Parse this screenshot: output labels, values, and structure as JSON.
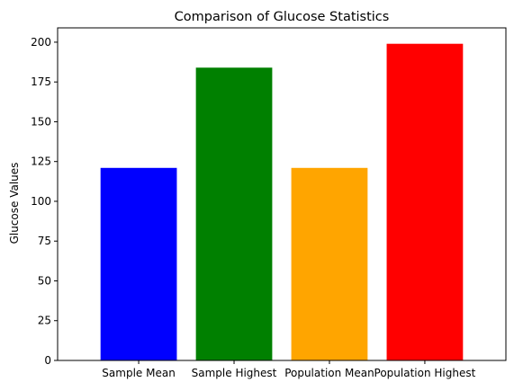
{
  "chart_data": {
    "type": "bar",
    "title": "Comparison of Glucose Statistics",
    "xlabel": "",
    "ylabel": "Glucose Values",
    "categories": [
      "Sample Mean",
      "Sample Highest",
      "Population Mean",
      "Population Highest"
    ],
    "values": [
      121,
      184,
      121,
      199
    ],
    "colors": [
      "#0000ff",
      "#008000",
      "#ffa500",
      "#ff0000"
    ],
    "ylim": [
      0,
      209
    ],
    "yticks": [
      0,
      25,
      50,
      75,
      100,
      125,
      150,
      175,
      200
    ],
    "grid": false,
    "legend": "none"
  }
}
